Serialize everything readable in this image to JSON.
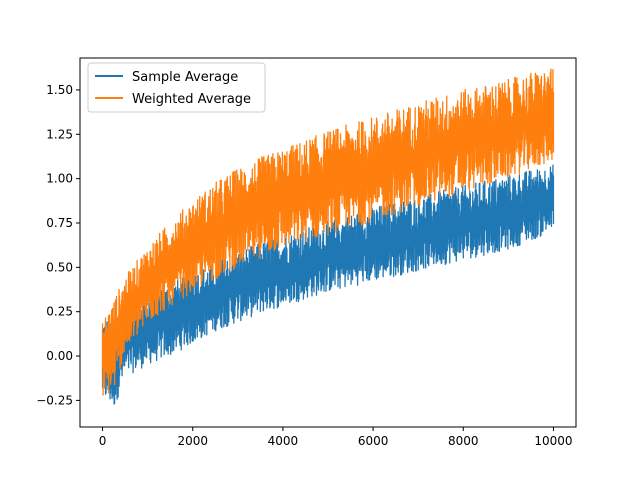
{
  "chart_data": {
    "type": "line",
    "title": "",
    "xlabel": "",
    "ylabel": "",
    "xlim": [
      -500,
      10500
    ],
    "ylim": [
      -0.4,
      1.68
    ],
    "x_ticks": [
      0,
      2000,
      4000,
      6000,
      8000,
      10000
    ],
    "x_tick_labels": [
      "0",
      "2000",
      "4000",
      "6000",
      "8000",
      "10000"
    ],
    "y_ticks": [
      -0.25,
      0.0,
      0.25,
      0.5,
      0.75,
      1.0,
      1.25,
      1.5
    ],
    "y_tick_labels": [
      "−0.25",
      "0.00",
      "0.25",
      "0.50",
      "0.75",
      "1.00",
      "1.25",
      "1.50"
    ],
    "grid": false,
    "legend_position": "top-left",
    "series": [
      {
        "name": "Sample Average",
        "color": "#1f77b4",
        "x": [
          0,
          250,
          500,
          1000,
          1500,
          2000,
          2500,
          3000,
          3500,
          4000,
          4500,
          5000,
          5500,
          6000,
          6500,
          7000,
          7500,
          8000,
          8500,
          9000,
          9500,
          10000
        ],
        "upper": [
          0.22,
          0.22,
          0.28,
          0.34,
          0.41,
          0.47,
          0.53,
          0.59,
          0.64,
          0.68,
          0.72,
          0.76,
          0.8,
          0.84,
          0.87,
          0.9,
          0.93,
          0.96,
          0.99,
          1.02,
          1.05,
          1.08
        ],
        "lower": [
          -0.24,
          -0.3,
          -0.12,
          -0.05,
          0.0,
          0.07,
          0.14,
          0.19,
          0.24,
          0.28,
          0.32,
          0.36,
          0.39,
          0.42,
          0.45,
          0.48,
          0.51,
          0.54,
          0.57,
          0.6,
          0.65,
          0.7
        ]
      },
      {
        "name": "Weighted Average",
        "color": "#ff7f0e",
        "x": [
          0,
          250,
          500,
          1000,
          1500,
          2000,
          2500,
          3000,
          3500,
          4000,
          4500,
          5000,
          5500,
          6000,
          6500,
          7000,
          7500,
          8000,
          8500,
          9000,
          9500,
          10000
        ],
        "upper": [
          0.2,
          0.32,
          0.45,
          0.62,
          0.76,
          0.88,
          0.98,
          1.06,
          1.12,
          1.17,
          1.22,
          1.27,
          1.31,
          1.35,
          1.39,
          1.43,
          1.47,
          1.5,
          1.53,
          1.56,
          1.6,
          1.62
        ],
        "lower": [
          -0.24,
          -0.2,
          0.02,
          0.18,
          0.28,
          0.36,
          0.43,
          0.5,
          0.55,
          0.6,
          0.64,
          0.68,
          0.72,
          0.76,
          0.8,
          0.84,
          0.88,
          0.92,
          0.96,
          1.0,
          1.05,
          1.1
        ]
      }
    ]
  }
}
